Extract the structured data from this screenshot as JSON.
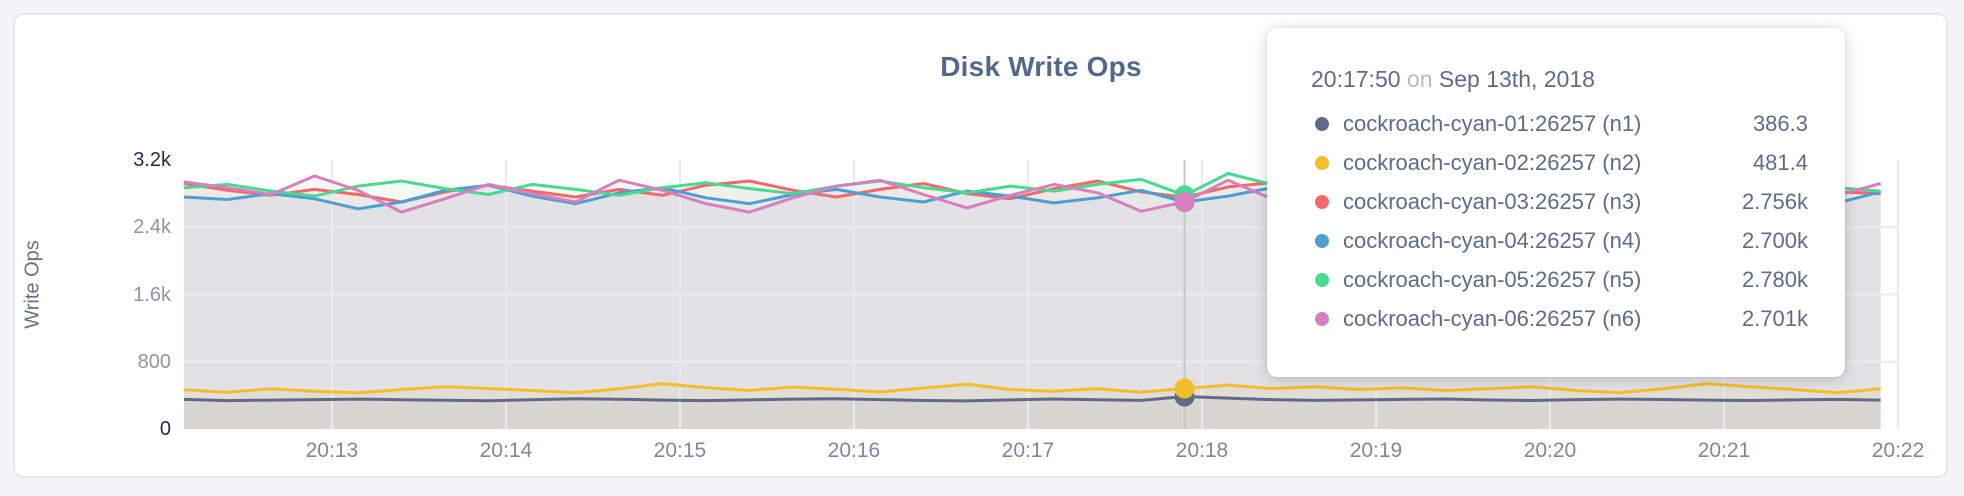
{
  "chart_data": {
    "type": "line",
    "title": "Disk Write Ops",
    "ylabel": "Write Ops",
    "ylim": [
      0,
      3200
    ],
    "grid": true,
    "legend_position": "tooltip-overlay",
    "y_ticks": [
      {
        "value": 0,
        "label": "0",
        "grid": false,
        "emphasis": true
      },
      {
        "value": 800,
        "label": "800",
        "grid": true,
        "emphasis": false
      },
      {
        "value": 1600,
        "label": "1.6k",
        "grid": true,
        "emphasis": false
      },
      {
        "value": 2400,
        "label": "2.4k",
        "grid": true,
        "emphasis": false
      },
      {
        "value": 3200,
        "label": "3.2k",
        "grid": false,
        "emphasis": true
      }
    ],
    "x_ticks": {
      "labels": [
        "20:13",
        "20:14",
        "20:15",
        "20:16",
        "20:17",
        "20:18",
        "20:19",
        "20:20",
        "20:21",
        "20:22"
      ],
      "first_sec": 51,
      "interval_sec": 60
    },
    "x_total_sec": 591,
    "sample_interval_sec": 15,
    "highlight_index": 23,
    "highlight_time": "20:17:50",
    "series": [
      {
        "name": "cockroach-cyan-01:26257 (n1)",
        "color": "#5F6C87",
        "values": [
          352,
          338,
          344,
          350,
          356,
          349,
          342,
          337,
          348,
          360,
          354,
          344,
          338,
          346,
          356,
          361,
          350,
          339,
          334,
          346,
          357,
          349,
          340,
          386.3,
          368,
          350,
          340,
          346,
          352,
          357,
          345,
          339,
          350,
          356,
          351,
          344,
          339,
          346,
          352,
          344
        ]
      },
      {
        "name": "cockroach-cyan-02:26257 (n2)",
        "color": "#F2BE2C",
        "values": [
          468,
          438,
          478,
          448,
          430,
          470,
          502,
          482,
          458,
          432,
          478,
          540,
          492,
          458,
          500,
          472,
          440,
          488,
          532,
          470,
          448,
          480,
          438,
          481.4,
          522,
          480,
          502,
          470,
          490,
          458,
          480,
          502,
          458,
          432,
          478,
          540,
          502,
          470,
          432,
          478
        ]
      },
      {
        "name": "cockroach-cyan-03:26257 (n3)",
        "color": "#F16969",
        "values": [
          2920,
          2840,
          2780,
          2850,
          2790,
          2700,
          2820,
          2900,
          2830,
          2760,
          2850,
          2780,
          2900,
          2950,
          2840,
          2760,
          2850,
          2920,
          2800,
          2740,
          2860,
          2950,
          2820,
          2756,
          2880,
          2930,
          2810,
          2750,
          2870,
          2820,
          2740,
          2850,
          2930,
          2840,
          2760,
          2870,
          2800,
          2730,
          2820,
          2800
        ]
      },
      {
        "name": "cockroach-cyan-04:26257 (n4)",
        "color": "#4E9FD1",
        "values": [
          2760,
          2730,
          2800,
          2740,
          2620,
          2700,
          2840,
          2900,
          2770,
          2680,
          2810,
          2870,
          2750,
          2680,
          2790,
          2850,
          2760,
          2700,
          2830,
          2770,
          2690,
          2750,
          2840,
          2700,
          2770,
          2870,
          2810,
          2720,
          2660,
          2750,
          2830,
          2770,
          2690,
          2810,
          2870,
          2790,
          2700,
          2750,
          2690,
          2820
        ]
      },
      {
        "name": "cockroach-cyan-05:26257 (n5)",
        "color": "#49D990",
        "values": [
          2870,
          2910,
          2830,
          2770,
          2890,
          2950,
          2860,
          2790,
          2910,
          2850,
          2780,
          2870,
          2930,
          2860,
          2800,
          2890,
          2950,
          2870,
          2810,
          2890,
          2830,
          2910,
          2970,
          2780,
          3040,
          2910,
          2830,
          2890,
          2950,
          2870,
          2800,
          2880,
          2820,
          2760,
          2850,
          2910,
          2860,
          2790,
          2870,
          2830
        ]
      },
      {
        "name": "cockroach-cyan-06:26257 (n6)",
        "color": "#D77FBF",
        "values": [
          2940,
          2870,
          2790,
          3010,
          2840,
          2580,
          2740,
          2910,
          2800,
          2700,
          2960,
          2840,
          2680,
          2580,
          2750,
          2890,
          2960,
          2790,
          2630,
          2780,
          2910,
          2810,
          2590,
          2701,
          2960,
          2740,
          2590,
          2850,
          2960,
          2770,
          2640,
          2800,
          2910,
          2740,
          2820,
          2960,
          2840,
          2690,
          2780,
          2920
        ]
      }
    ]
  },
  "tooltip": {
    "time": "20:17:50",
    "conj": "on",
    "date": "Sep 13th, 2018",
    "rows": [
      {
        "name": "cockroach-cyan-01:26257 (n1)",
        "value": "386.3",
        "color": "#5F6C87"
      },
      {
        "name": "cockroach-cyan-02:26257 (n2)",
        "value": "481.4",
        "color": "#F2BE2C"
      },
      {
        "name": "cockroach-cyan-03:26257 (n3)",
        "value": "2.756k",
        "color": "#F16969"
      },
      {
        "name": "cockroach-cyan-04:26257 (n4)",
        "value": "2.700k",
        "color": "#4E9FD1"
      },
      {
        "name": "cockroach-cyan-05:26257 (n5)",
        "value": "2.780k",
        "color": "#49D990"
      },
      {
        "name": "cockroach-cyan-06:26257 (n6)",
        "value": "2.701k",
        "color": "#D77FBF"
      }
    ]
  },
  "colors": {
    "title": "#54688E",
    "tick_muted": "#8D95A7",
    "tick_emphasis": "#1D2D50",
    "xtick": "#7C88A0",
    "grid": "#EBEBEE",
    "crosshair": "#C6C7CB",
    "area_fill_opacity": "0.08"
  }
}
